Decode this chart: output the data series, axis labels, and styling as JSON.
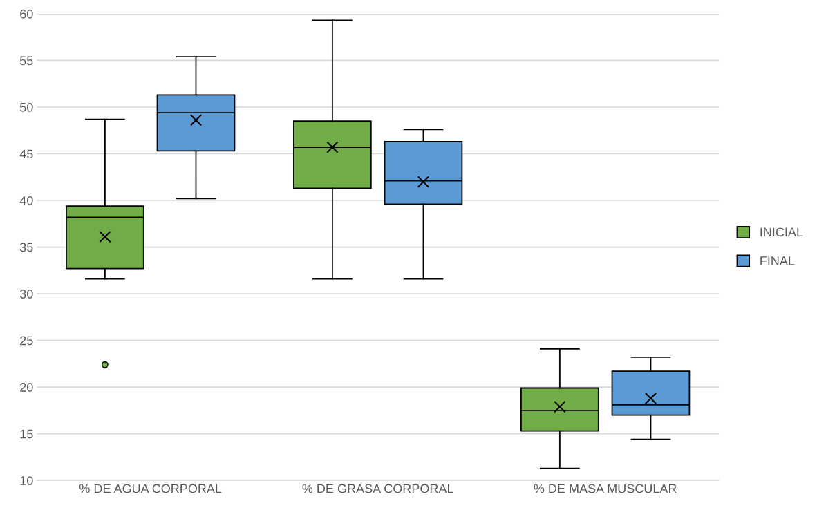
{
  "chart_data": {
    "type": "box",
    "categories": [
      "% DE AGUA CORPORAL",
      "% DE GRASA CORPORAL",
      "% DE MASA MUSCULAR"
    ],
    "ylim": [
      10,
      60
    ],
    "yticks": [
      10,
      15,
      20,
      25,
      30,
      35,
      40,
      45,
      50,
      55,
      60
    ],
    "grid": "y",
    "legend": "right",
    "series": [
      {
        "name": "INICIAL",
        "color": "#70ad47",
        "boxes": [
          {
            "low": 31.6,
            "q1": 32.7,
            "median": 38.2,
            "q3": 39.4,
            "high": 48.7,
            "mean": 36.1,
            "outliers": [
              22.4
            ]
          },
          {
            "low": 31.6,
            "q1": 41.3,
            "median": 45.7,
            "q3": 48.5,
            "high": 59.3,
            "mean": 45.7
          },
          {
            "low": 11.3,
            "q1": 15.3,
            "median": 17.5,
            "q3": 19.9,
            "high": 24.1,
            "mean": 17.9
          }
        ]
      },
      {
        "name": "FINAL",
        "color": "#5b9bd5",
        "boxes": [
          {
            "low": 40.2,
            "q1": 45.3,
            "median": 49.4,
            "q3": 51.3,
            "high": 55.4,
            "mean": 48.6
          },
          {
            "low": 31.6,
            "q1": 39.6,
            "median": 42.1,
            "q3": 46.3,
            "high": 47.6,
            "mean": 42.0
          },
          {
            "low": 14.4,
            "q1": 17.0,
            "median": 18.1,
            "q3": 21.7,
            "high": 23.2,
            "mean": 18.8
          }
        ]
      }
    ]
  }
}
